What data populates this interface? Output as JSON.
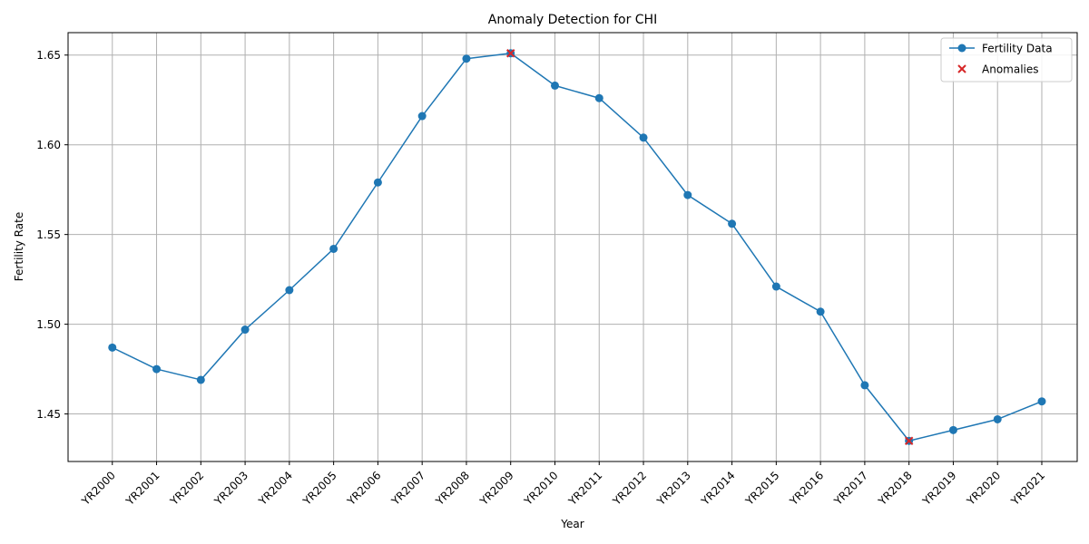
{
  "chart_data": {
    "type": "line",
    "title": "Anomaly Detection for CHI",
    "xlabel": "Year",
    "ylabel": "Fertility Rate",
    "categories": [
      "YR2000",
      "YR2001",
      "YR2002",
      "YR2003",
      "YR2004",
      "YR2005",
      "YR2006",
      "YR2007",
      "YR2008",
      "YR2009",
      "YR2010",
      "YR2011",
      "YR2012",
      "YR2013",
      "YR2014",
      "YR2015",
      "YR2016",
      "YR2017",
      "YR2018",
      "YR2019",
      "YR2020",
      "YR2021"
    ],
    "series": [
      {
        "name": "Fertility Data",
        "color": "#1f77b4",
        "marker": "circle",
        "values": [
          1.487,
          1.475,
          1.469,
          1.497,
          1.519,
          1.542,
          1.579,
          1.616,
          1.648,
          1.651,
          1.633,
          1.626,
          1.604,
          1.572,
          1.556,
          1.521,
          1.507,
          1.466,
          1.435,
          1.441,
          1.447,
          1.457
        ]
      },
      {
        "name": "Anomalies",
        "color": "#d62728",
        "marker": "x",
        "points": [
          {
            "x": "YR2009",
            "y": 1.651
          },
          {
            "x": "YR2018",
            "y": 1.435
          }
        ]
      }
    ],
    "ylim": [
      1.4235,
      1.6625
    ],
    "yticks": [
      "1.45",
      "1.50",
      "1.55",
      "1.60",
      "1.65"
    ],
    "grid": true,
    "legend_position": "top-right"
  }
}
